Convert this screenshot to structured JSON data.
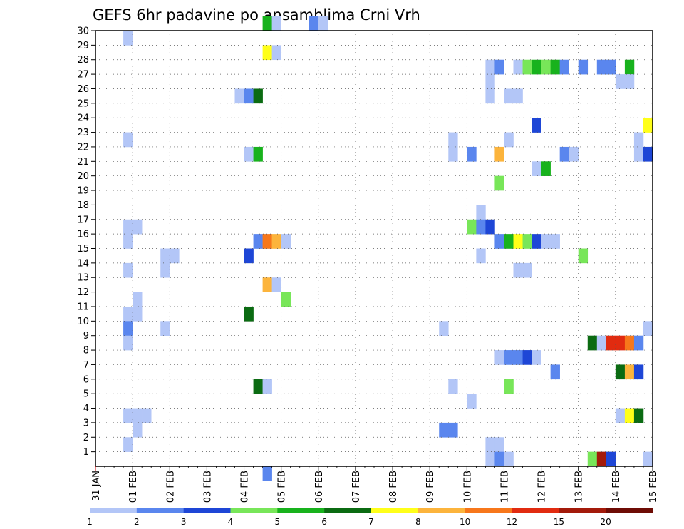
{
  "chart_data": {
    "type": "heatmap",
    "title": "GEFS 6hr padavine po ansamblima Crni Vrh",
    "xlabel": "",
    "ylabel": "",
    "x_ticks": [
      "31 JAN",
      "01 FEB",
      "02 FEB",
      "03 FEB",
      "04 FEB",
      "05 FEB",
      "06 FEB",
      "07 FEB",
      "08 FEB",
      "09 FEB",
      "10 FEB",
      "11 FEB",
      "12 FEB",
      "13 FEB",
      "14 FEB",
      "15 FEB"
    ],
    "y_ticks": [
      "1",
      "2",
      "3",
      "4",
      "5",
      "6",
      "7",
      "8",
      "9",
      "10",
      "11",
      "12",
      "13",
      "14",
      "15",
      "16",
      "17",
      "18",
      "19",
      "20",
      "21",
      "22",
      "23",
      "24",
      "25",
      "26",
      "27",
      "28",
      "29",
      "30"
    ],
    "y_range": [
      0,
      30
    ],
    "x_step_hours": 6,
    "grid": true,
    "legend": {
      "placement": "bottom",
      "levels": [
        "1",
        "2",
        "3",
        "4",
        "5",
        "6",
        "7",
        "8",
        "10",
        "12",
        "15",
        "20"
      ],
      "colors": [
        "#b3c6f7",
        "#5a86ee",
        "#1e46d6",
        "#78e659",
        "#18b21d",
        "#0b6b12",
        "#ffff19",
        "#fcb43c",
        "#f7771b",
        "#e12b10",
        "#a31a0a",
        "#6e0c05"
      ]
    },
    "cells_format": "[member, step, class]",
    "cells": [
      [
        30,
        18,
        4
      ],
      [
        30,
        20,
        0
      ],
      [
        30,
        24,
        0
      ],
      [
        30,
        24,
        0
      ],
      [
        30,
        24,
        0
      ],
      [
        30,
        24,
        0
      ],
      [
        30,
        24,
        0
      ],
      [
        30,
        24,
        0
      ],
      [
        30,
        24,
        0
      ],
      [
        30,
        24,
        0
      ],
      [
        30,
        24,
        0
      ],
      [
        30,
        24,
        0
      ],
      [
        30,
        24,
        0
      ],
      [
        30,
        24,
        0
      ],
      [
        30,
        24,
        0
      ],
      [
        30,
        24,
        0
      ],
      [
        30,
        24,
        0
      ],
      [
        30,
        24,
        0
      ],
      [
        30,
        24,
        0
      ],
      [
        30,
        24,
        0
      ],
      [
        30,
        24,
        0
      ],
      [
        30,
        24,
        0
      ],
      [
        30,
        24,
        0
      ],
      [
        30,
        24,
        0
      ],
      [
        30,
        24,
        0
      ],
      [
        30,
        24,
        0
      ],
      [
        30,
        24,
        0
      ],
      [
        30,
        24,
        0
      ],
      [
        30,
        24,
        0
      ],
      [
        30,
        24,
        0
      ],
      [
        30,
        24,
        0
      ],
      [
        30,
        24,
        0
      ],
      [
        30,
        24,
        0
      ],
      [
        30,
        24,
        0
      ],
      [
        30,
        24,
        0
      ]
    ]
  }
}
